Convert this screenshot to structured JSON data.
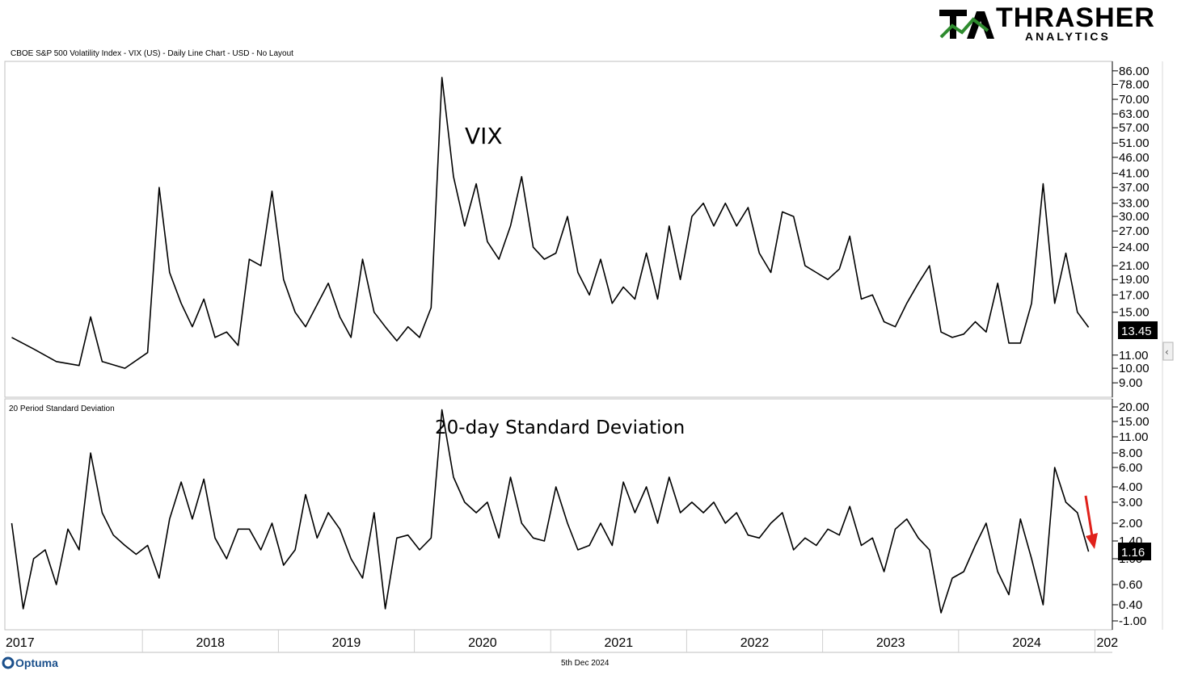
{
  "header": {
    "logo_main": "THRASHER",
    "logo_sub": "ANALYTICS",
    "chart_caption": "CBOE S&P 500 Volatility Index - VIX (US) - Daily Line Chart - USD - No Layout"
  },
  "footer": {
    "brand": "Optuma",
    "date": "5th Dec 2024"
  },
  "colors": {
    "line": "#000000",
    "arrow": "#e0211b",
    "logo_green": "#2e8b2e",
    "badge_bg": "#000000",
    "badge_text": "#ffffff"
  },
  "chart_data": [
    {
      "type": "line",
      "caption": "CBOE S&P 500 Volatility Index - VIX (US) - Daily Line Chart - USD - No Layout",
      "annotation": "VIX",
      "y_scale": "log",
      "y_ticks": [
        "86.00",
        "78.00",
        "70.00",
        "63.00",
        "57.00",
        "51.00",
        "46.00",
        "41.00",
        "37.00",
        "33.00",
        "30.00",
        "27.00",
        "24.00",
        "21.00",
        "19.00",
        "17.00",
        "15.00",
        "11.00",
        "10.00",
        "9.00"
      ],
      "last_value_label": "13.45",
      "ylim": [
        8.3,
        90
      ],
      "x_range": [
        "2017-01-01",
        "2024-12-05"
      ],
      "x": [
        "2017-01",
        "2017-03",
        "2017-05",
        "2017-07",
        "2017-08",
        "2017-09",
        "2017-11",
        "2018-01",
        "2018-02",
        "2018-03",
        "2018-04",
        "2018-05",
        "2018-06",
        "2018-07",
        "2018-08",
        "2018-09",
        "2018-10",
        "2018-11",
        "2018-12",
        "2019-01",
        "2019-02",
        "2019-03",
        "2019-05",
        "2019-06",
        "2019-07",
        "2019-08",
        "2019-09",
        "2019-10",
        "2019-11",
        "2019-12",
        "2020-01",
        "2020-02",
        "2020-03",
        "2020-04",
        "2020-05",
        "2020-06",
        "2020-07",
        "2020-08",
        "2020-09",
        "2020-10",
        "2020-11",
        "2020-12",
        "2021-01",
        "2021-02",
        "2021-03",
        "2021-04",
        "2021-05",
        "2021-06",
        "2021-07",
        "2021-08",
        "2021-09",
        "2021-10",
        "2021-11",
        "2021-12",
        "2022-01",
        "2022-02",
        "2022-03",
        "2022-04",
        "2022-05",
        "2022-06",
        "2022-07",
        "2022-08",
        "2022-09",
        "2022-10",
        "2022-11",
        "2022-12",
        "2023-01",
        "2023-02",
        "2023-03",
        "2023-04",
        "2023-05",
        "2023-06",
        "2023-07",
        "2023-08",
        "2023-09",
        "2023-10",
        "2023-11",
        "2023-12",
        "2024-01",
        "2024-02",
        "2024-03",
        "2024-04",
        "2024-05",
        "2024-06",
        "2024-07",
        "2024-08",
        "2024-09",
        "2024-10",
        "2024-11",
        "2024-12"
      ],
      "values": [
        12.5,
        11.5,
        10.5,
        10.2,
        14.5,
        10.5,
        10.0,
        11.2,
        37.0,
        20.0,
        16.0,
        13.5,
        16.5,
        12.5,
        13.0,
        11.8,
        22.0,
        21.0,
        36.0,
        19.0,
        15.0,
        13.5,
        18.5,
        14.5,
        12.5,
        22.0,
        15.0,
        13.5,
        12.2,
        13.5,
        12.5,
        15.5,
        82.0,
        40.0,
        28.0,
        38.0,
        25.0,
        22.0,
        28.0,
        40.0,
        24.0,
        22.0,
        23.0,
        30.0,
        20.0,
        17.0,
        22.0,
        16.0,
        18.0,
        16.5,
        23.0,
        16.5,
        28.0,
        19.0,
        30.0,
        33.0,
        28.0,
        33.0,
        28.0,
        32.0,
        23.0,
        20.0,
        31.0,
        30.0,
        21.0,
        20.0,
        19.0,
        20.5,
        26.0,
        16.5,
        17.0,
        14.0,
        13.5,
        16.0,
        18.5,
        21.0,
        13.0,
        12.5,
        12.8,
        14.0,
        13.0,
        18.5,
        12.0,
        12.0,
        16.0,
        38.0,
        16.0,
        23.0,
        15.0,
        13.45
      ]
    },
    {
      "type": "line",
      "caption": "20 Period Standard Deviation",
      "annotation": "20-day Standard Deviation",
      "y_ticks": [
        "20.00",
        "15.00",
        "11.00",
        "8.00",
        "6.00",
        "4.00",
        "3.00",
        "2.00",
        "1.40",
        "1.00",
        "0.60",
        "0.40",
        "-1.00"
      ],
      "last_value_label": "1.16",
      "x_range": [
        "2017-01-01",
        "2024-12-05"
      ],
      "x": [
        "2017-01",
        "2017-02",
        "2017-03",
        "2017-04",
        "2017-05",
        "2017-06",
        "2017-07",
        "2017-08",
        "2017-09",
        "2017-10",
        "2017-11",
        "2017-12",
        "2018-01",
        "2018-02",
        "2018-03",
        "2018-04",
        "2018-05",
        "2018-06",
        "2018-07",
        "2018-08",
        "2018-09",
        "2018-10",
        "2018-11",
        "2018-12",
        "2019-01",
        "2019-02",
        "2019-03",
        "2019-04",
        "2019-05",
        "2019-06",
        "2019-07",
        "2019-08",
        "2019-09",
        "2019-10",
        "2019-11",
        "2019-12",
        "2020-01",
        "2020-02",
        "2020-03",
        "2020-04",
        "2020-05",
        "2020-06",
        "2020-07",
        "2020-08",
        "2020-09",
        "2020-10",
        "2020-11",
        "2020-12",
        "2021-01",
        "2021-02",
        "2021-03",
        "2021-04",
        "2021-05",
        "2021-06",
        "2021-07",
        "2021-08",
        "2021-09",
        "2021-10",
        "2021-11",
        "2021-12",
        "2022-01",
        "2022-02",
        "2022-03",
        "2022-04",
        "2022-05",
        "2022-06",
        "2022-07",
        "2022-08",
        "2022-09",
        "2022-10",
        "2022-11",
        "2022-12",
        "2023-01",
        "2023-02",
        "2023-03",
        "2023-04",
        "2023-05",
        "2023-06",
        "2023-07",
        "2023-08",
        "2023-09",
        "2023-10",
        "2023-11",
        "2023-12",
        "2024-01",
        "2024-02",
        "2024-03",
        "2024-04",
        "2024-05",
        "2024-06",
        "2024-07",
        "2024-08",
        "2024-09",
        "2024-10",
        "2024-11",
        "2024-12"
      ],
      "values": [
        2.0,
        0.3,
        1.0,
        1.2,
        0.6,
        1.8,
        1.2,
        8.0,
        2.5,
        1.6,
        1.3,
        1.1,
        1.3,
        0.7,
        2.2,
        4.5,
        2.2,
        4.8,
        1.5,
        1.0,
        1.8,
        1.8,
        1.2,
        2.0,
        0.9,
        1.2,
        3.5,
        1.5,
        2.5,
        1.8,
        1.0,
        0.7,
        2.5,
        0.3,
        1.5,
        1.6,
        1.2,
        1.5,
        19.0,
        5.0,
        3.0,
        2.5,
        3.0,
        1.5,
        5.0,
        2.0,
        1.5,
        1.4,
        4.0,
        2.0,
        1.2,
        1.3,
        2.0,
        1.3,
        4.5,
        2.5,
        4.0,
        2.0,
        5.0,
        2.5,
        3.0,
        2.5,
        3.0,
        2.0,
        2.5,
        1.6,
        1.5,
        2.0,
        2.5,
        1.2,
        1.5,
        1.3,
        1.8,
        1.6,
        2.8,
        1.3,
        1.5,
        0.8,
        1.8,
        2.2,
        1.5,
        1.2,
        0.2,
        0.7,
        0.8,
        1.3,
        2.0,
        0.8,
        0.5,
        2.2,
        1.0,
        0.4,
        6.0,
        3.0,
        2.5,
        1.16
      ]
    }
  ],
  "x_axis": {
    "year_labels": [
      "2017",
      "2018",
      "2019",
      "2020",
      "2021",
      "2022",
      "2023",
      "2024",
      "202"
    ]
  }
}
